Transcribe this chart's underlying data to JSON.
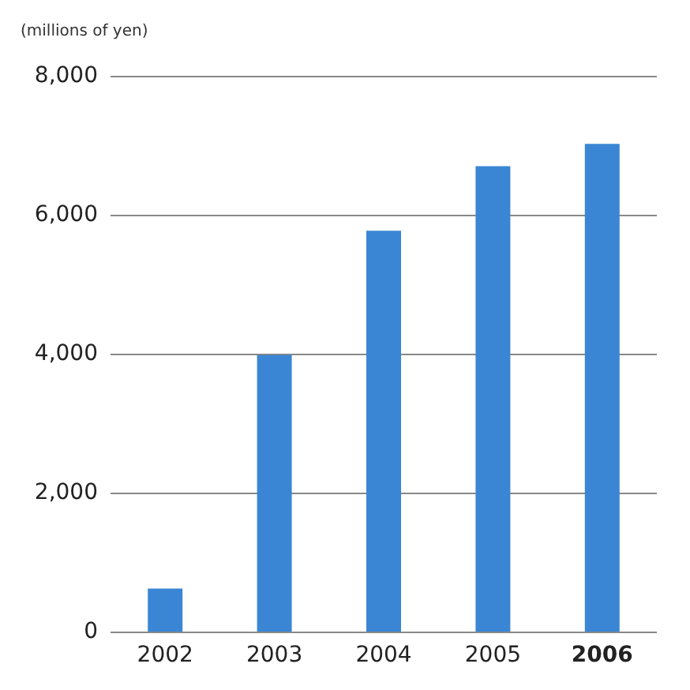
{
  "chart_data": {
    "type": "bar",
    "ylabel": "(millions of yen)",
    "categories": [
      "2002",
      "2003",
      "2004",
      "2005",
      "2006"
    ],
    "values": [
      620,
      3980,
      5770,
      6700,
      7020
    ],
    "color": "#3a86d4",
    "ylim": [
      0,
      8000
    ],
    "yticks": [
      0,
      {
        "value": 2000,
        "label": "2,000"
      },
      {
        "value": 4000,
        "label": "4,000"
      },
      {
        "value": 6000,
        "label": "6,000"
      },
      {
        "value": 8000,
        "label": "8,000"
      }
    ],
    "grid": "y"
  }
}
